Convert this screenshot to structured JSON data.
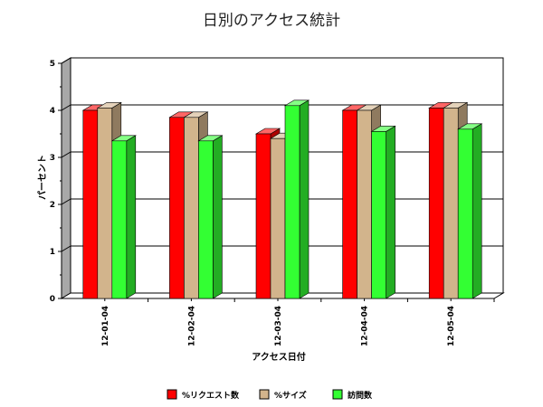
{
  "chart_data": {
    "type": "bar",
    "title": "日別のアクセス統計",
    "xlabel": "アクセス日付",
    "ylabel": "パーセント",
    "categories": [
      "12-01-04",
      "12-02-04",
      "12-03-04",
      "12-04-04",
      "12-05-04"
    ],
    "series": [
      {
        "name": "%リクエスト数",
        "values": [
          4.0,
          3.85,
          3.5,
          4.0,
          4.05
        ],
        "color": "#ff0000"
      },
      {
        "name": "%サイズ",
        "values": [
          4.05,
          3.85,
          3.4,
          4.0,
          4.05
        ],
        "color": "#d2b48c"
      },
      {
        "name": "訪問数",
        "values": [
          3.35,
          3.35,
          4.1,
          3.55,
          3.6
        ],
        "color": "#33ff33"
      }
    ],
    "ylim": [
      0,
      5
    ],
    "yticks": [
      "0",
      "1",
      "2",
      "3",
      "4",
      "5"
    ],
    "grid": true,
    "legend_position": "bottom"
  }
}
